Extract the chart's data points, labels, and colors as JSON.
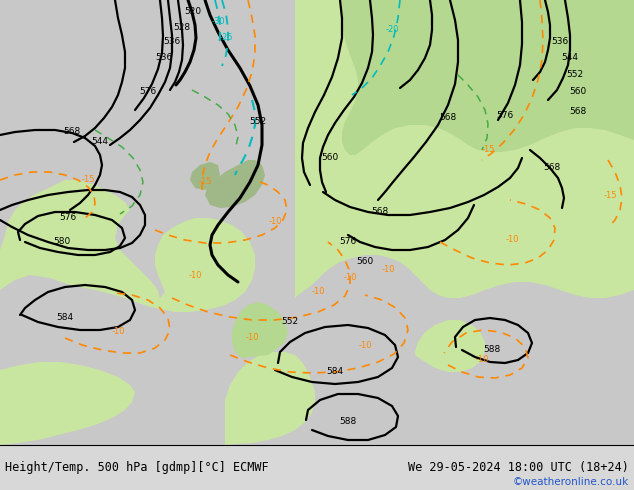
{
  "title_left": "Height/Temp. 500 hPa [gdmp][°C] ECMWF",
  "title_right": "We 29-05-2024 18:00 UTC (18+24)",
  "credit": "©weatheronline.co.uk",
  "fig_width": 6.34,
  "fig_height": 4.9,
  "dpi": 100,
  "bg_color": "#c8c8c8",
  "land_green_light": "#c8e6a0",
  "land_green_mid": "#b4d890",
  "sea_color": "#c8c8c8",
  "z500_color": "#000000",
  "temp_orange": "#ff8800",
  "temp_cyan": "#00bbbb",
  "temp_green": "#44aa44",
  "title_fontsize": 8.5,
  "credit_fontsize": 7.5,
  "label_fontsize": 6.5
}
